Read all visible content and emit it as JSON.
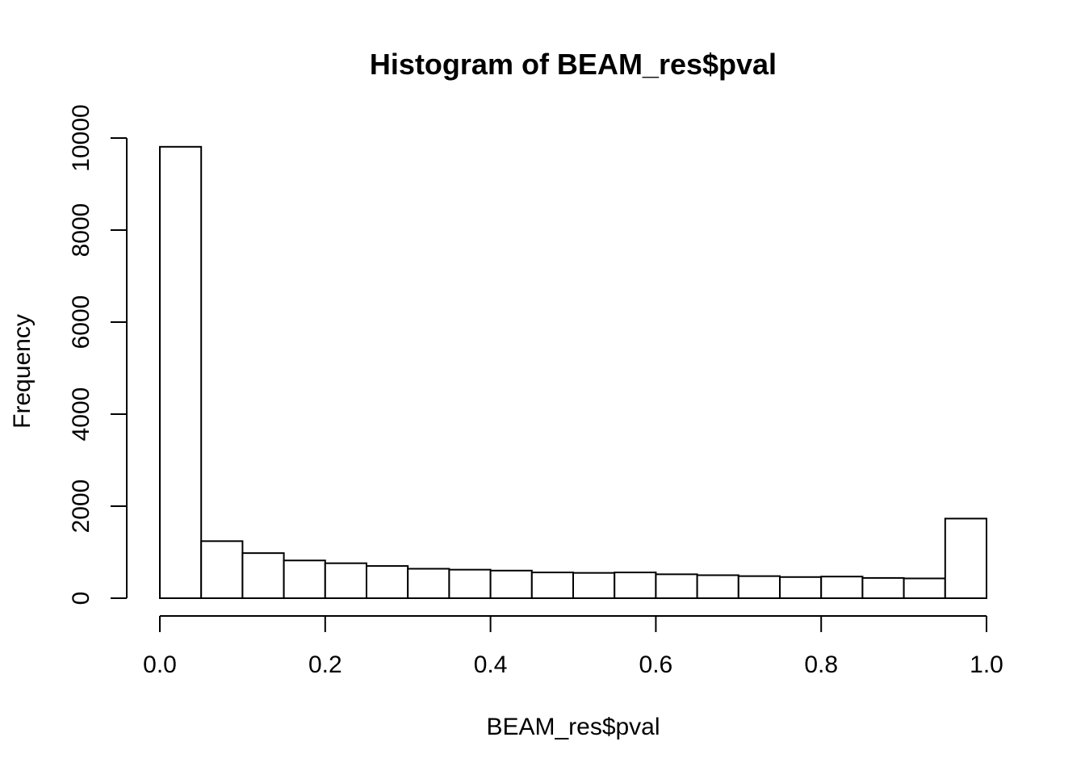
{
  "chart_data": {
    "type": "bar",
    "title": "Histogram of BEAM_res$pval",
    "xlabel": "BEAM_res$pval",
    "ylabel": "Frequency",
    "bin_edges": [
      0.0,
      0.05,
      0.1,
      0.15,
      0.2,
      0.25,
      0.3,
      0.35,
      0.4,
      0.45,
      0.5,
      0.55,
      0.6,
      0.65,
      0.7,
      0.75,
      0.8,
      0.85,
      0.9,
      0.95,
      1.0
    ],
    "values": [
      9810,
      1240,
      980,
      820,
      760,
      700,
      640,
      620,
      600,
      560,
      550,
      560,
      520,
      500,
      480,
      460,
      470,
      440,
      430,
      1730
    ],
    "xlim": [
      0,
      1
    ],
    "ylim": [
      0,
      10000
    ],
    "x_ticks": [
      "0.0",
      "0.2",
      "0.4",
      "0.6",
      "0.8",
      "1.0"
    ],
    "x_tick_values": [
      0,
      0.2,
      0.4,
      0.6,
      0.8,
      1.0
    ],
    "y_ticks": [
      "0",
      "2000",
      "4000",
      "6000",
      "8000",
      "10000"
    ],
    "y_tick_values": [
      0,
      2000,
      4000,
      6000,
      8000,
      10000
    ],
    "grid": false,
    "legend": "none",
    "bar_fill": "#ffffff",
    "bar_stroke": "#000000"
  }
}
